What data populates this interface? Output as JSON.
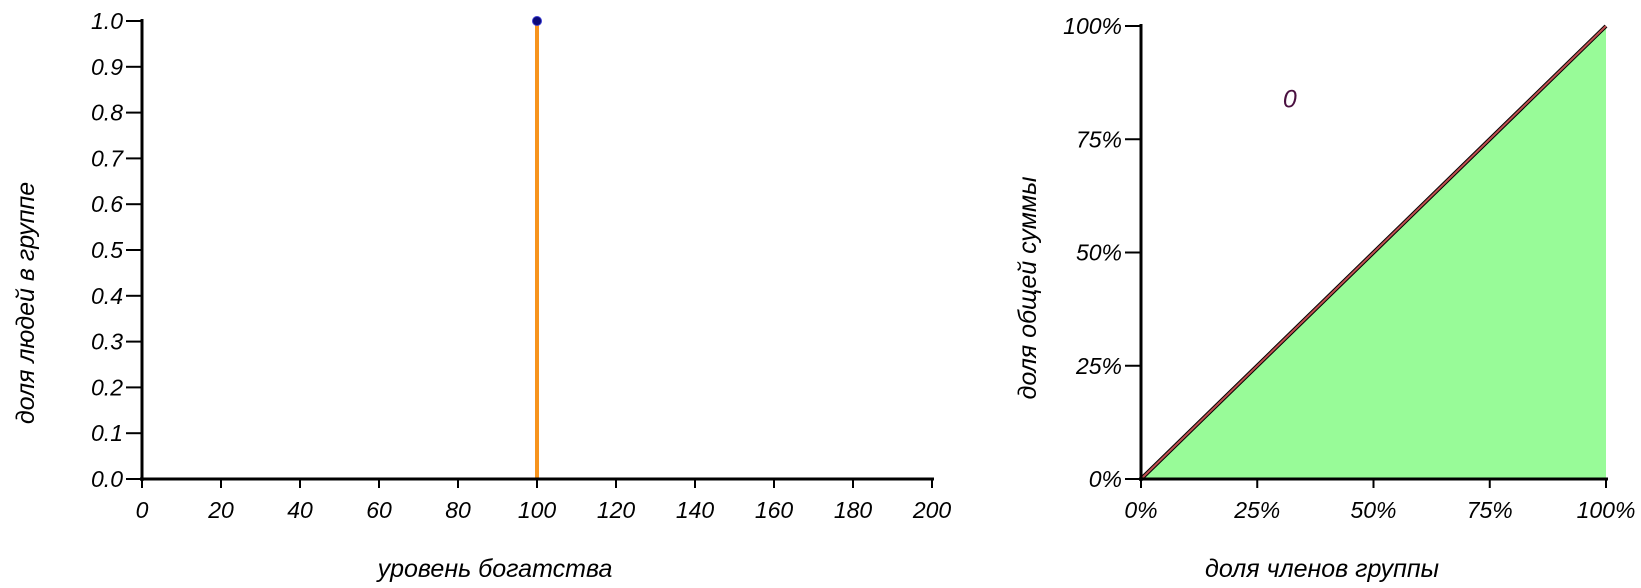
{
  "chart_data": [
    {
      "type": "bar",
      "xlabel": "уровень богатства",
      "ylabel": "доля людей в группе",
      "xlim": [
        0,
        200
      ],
      "ylim": [
        0,
        1.0
      ],
      "x_ticks": [
        0,
        20,
        40,
        60,
        80,
        100,
        120,
        140,
        160,
        180,
        200
      ],
      "y_ticks": [
        0.0,
        0.1,
        0.2,
        0.3,
        0.4,
        0.5,
        0.6,
        0.7,
        0.8,
        0.9,
        1.0
      ],
      "x_tick_labels": [
        "0",
        "20",
        "40",
        "60",
        "80",
        "100",
        "120",
        "140",
        "160",
        "180",
        "200"
      ],
      "y_tick_labels": [
        "0.0",
        "0.1",
        "0.2",
        "0.3",
        "0.4",
        "0.5",
        "0.6",
        "0.7",
        "0.8",
        "0.9",
        "1.0"
      ],
      "grid": false,
      "points": [
        {
          "x": 100,
          "y": 1.0
        }
      ],
      "colors": {
        "stem": "#f7941d",
        "marker": "#0a0a7a",
        "axis": "#000000"
      }
    },
    {
      "type": "area",
      "xlabel": "доля членов группы",
      "ylabel": "доля общей суммы",
      "xlim": [
        0,
        100
      ],
      "ylim": [
        0,
        100
      ],
      "x_ticks": [
        0,
        25,
        50,
        75,
        100
      ],
      "y_ticks": [
        0,
        25,
        50,
        75,
        100
      ],
      "x_tick_labels": [
        "0%",
        "25%",
        "50%",
        "75%",
        "100%"
      ],
      "y_tick_labels": [
        "0%",
        "25%",
        "50%",
        "75%",
        "100%"
      ],
      "grid": false,
      "lorenz_curve": {
        "x": [
          0,
          100
        ],
        "y": [
          0,
          100
        ]
      },
      "equality_line": {
        "x": [
          0,
          100
        ],
        "y": [
          0,
          100
        ]
      },
      "annotation": {
        "text": "0",
        "x": 32,
        "y": 82
      },
      "colors": {
        "fill": "#98fb98",
        "equality_line": "#000000",
        "curve": "#c05050",
        "annotation": "#4a1040",
        "axis": "#000000"
      }
    }
  ]
}
